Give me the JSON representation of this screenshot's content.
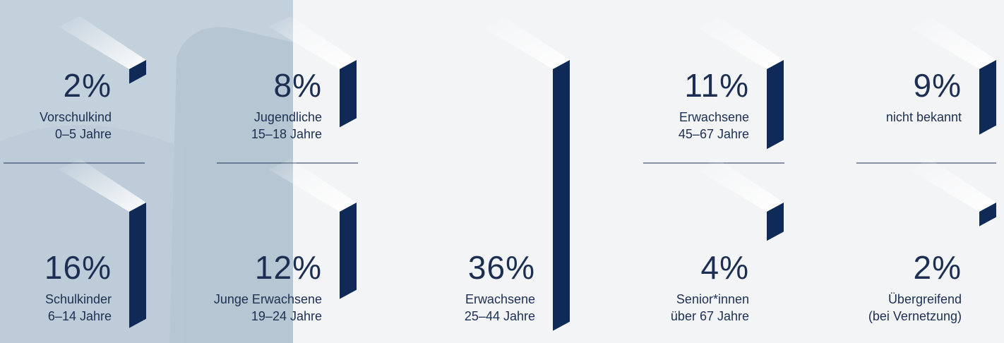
{
  "chart_data": {
    "type": "bar",
    "categories": [
      [
        "Vorschulkind",
        "0–5 Jahre"
      ],
      [
        "Jugendliche",
        "15–18 Jahre"
      ],
      [
        "Schulkinder",
        "6–14 Jahre"
      ],
      [
        "Junge Erwachsene",
        "19–24 Jahre"
      ],
      [
        "Erwachsene",
        "25–44 Jahre"
      ],
      [
        "Erwachsene",
        "45–67 Jahre"
      ],
      [
        "Senior*innen",
        "über 67 Jahre"
      ],
      [
        "nicht bekannt"
      ],
      [
        "Übergreifend",
        "(bei Vernetzung)"
      ]
    ],
    "values": [
      2,
      8,
      16,
      12,
      36,
      11,
      4,
      9,
      2
    ],
    "value_labels": [
      "2%",
      "8%",
      "16%",
      "12%",
      "36%",
      "11%",
      "4%",
      "9%",
      "2%"
    ],
    "color": "#0f2a56"
  }
}
